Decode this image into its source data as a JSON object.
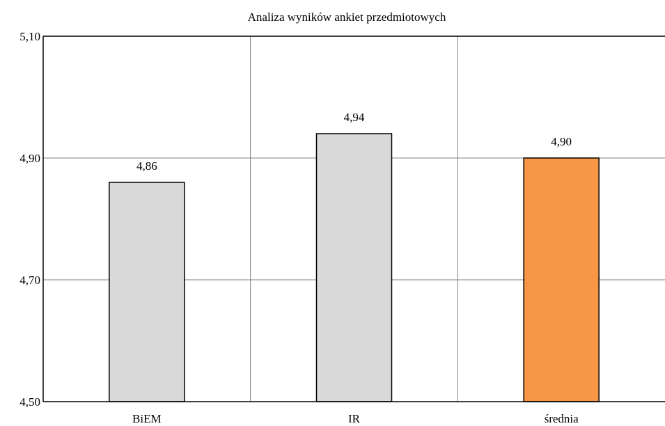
{
  "chart_data": {
    "type": "bar",
    "title": "Analiza wyników ankiet przedmiotowych",
    "xlabel": "",
    "ylabel": "",
    "categories": [
      "BiEM",
      "IR",
      "średnia"
    ],
    "values": [
      4.86,
      4.94,
      4.9
    ],
    "data_labels": [
      "4,86",
      "4,94",
      "4,90"
    ],
    "ylim": [
      4.5,
      5.1
    ],
    "yticks": [
      4.5,
      4.7,
      4.9,
      5.1
    ],
    "ytick_labels": [
      "4,50",
      "4,70",
      "4,90",
      "5,10"
    ],
    "grid": true,
    "legend": "none",
    "colors": {
      "bar": "#d9d9d9",
      "highlight_bar": "#f79646",
      "bar_stroke": "#000000",
      "grid": "#808080",
      "axis": "#000000"
    },
    "highlight_index": 2
  }
}
